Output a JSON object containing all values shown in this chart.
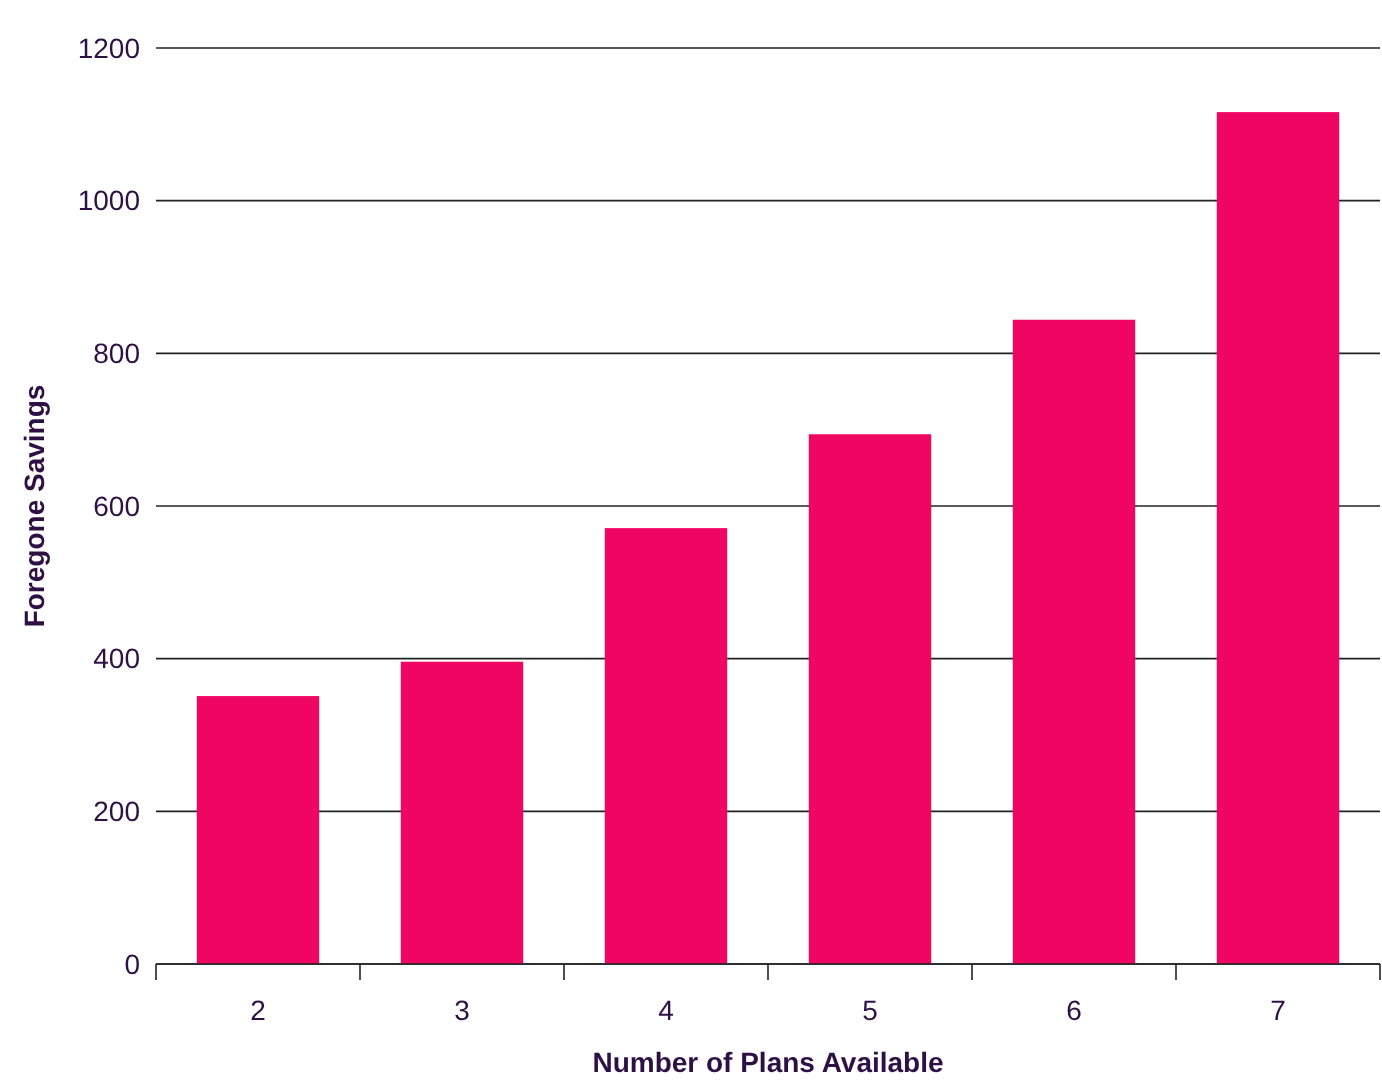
{
  "chart_data": {
    "type": "bar",
    "xlabel": "Number of Plans Available",
    "ylabel": "Foregone Savings",
    "categories": [
      "2",
      "3",
      "4",
      "5",
      "6",
      "7"
    ],
    "values": [
      351,
      396,
      571,
      694,
      844,
      1116
    ],
    "color": "#ef0662",
    "ylim": [
      0,
      1200
    ],
    "yticks": [
      0,
      200,
      400,
      600,
      800,
      1000,
      1200
    ],
    "grid": "y"
  }
}
